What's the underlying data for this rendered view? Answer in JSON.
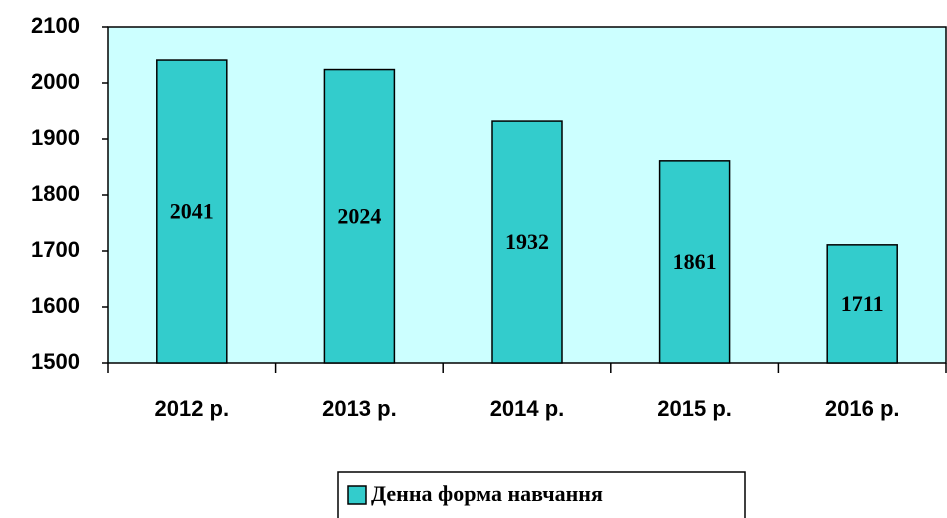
{
  "chart_data": {
    "type": "bar",
    "categories": [
      "2012 р.",
      "2013 р.",
      "2014 р.",
      "2015 р.",
      "2016 р."
    ],
    "series": [
      {
        "name": "Денна форма навчання",
        "color": "#33cccc",
        "values": [
          2041,
          2024,
          1932,
          1861,
          1711
        ]
      }
    ],
    "ylim": [
      1500,
      2100
    ],
    "yticks": [
      1500,
      1600,
      1700,
      1800,
      1900,
      2000,
      2100
    ],
    "plot_background": "#ccffff",
    "legend": "bottom"
  }
}
